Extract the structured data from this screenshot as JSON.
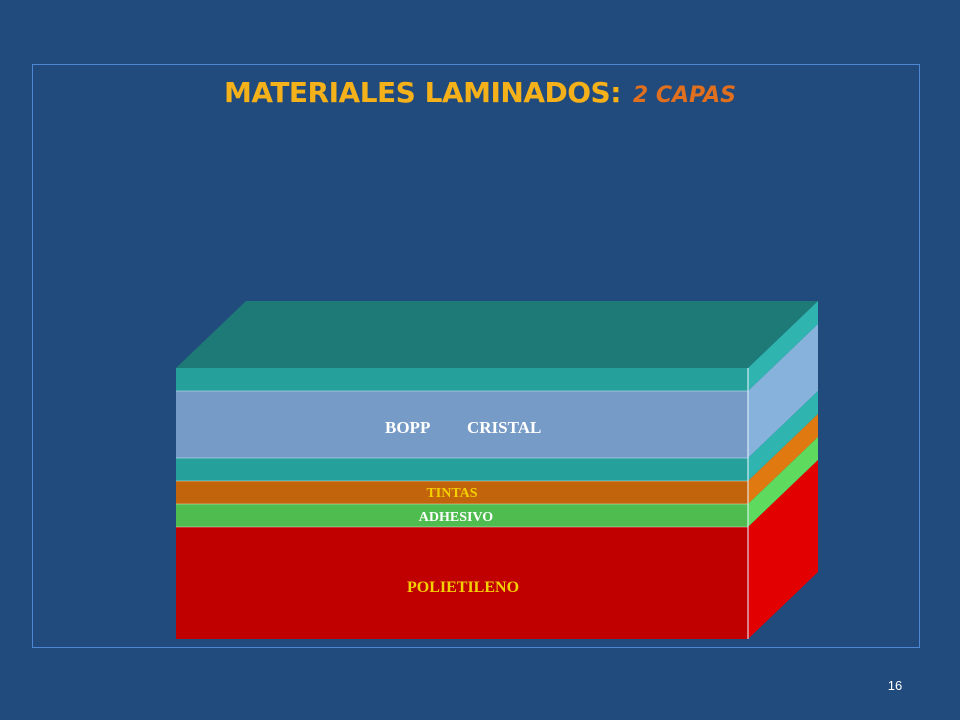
{
  "title": {
    "main": "MATERIALES LAMINADOS:",
    "sub": "2 CAPAS"
  },
  "layers": {
    "bopp": {
      "label_a": "BOPP",
      "label_b": "CRISTAL"
    },
    "tintas": {
      "label": "TINTAS"
    },
    "adhesivo": {
      "label": "ADHESIVO"
    },
    "polietileno": {
      "label": "POLIETILENO"
    }
  },
  "colors": {
    "background": "#214a7d",
    "title": "#f5b119",
    "subtitle": "#e06f1e",
    "top_face": "#1e7a77",
    "teal_layer": "#25a09b",
    "bopp_layer": "#769bc6",
    "tintas_layer": "#c2640c",
    "adhesivo_layer": "#4fbc4f",
    "polietileno_layer": "#c00000"
  },
  "page_number": "16"
}
